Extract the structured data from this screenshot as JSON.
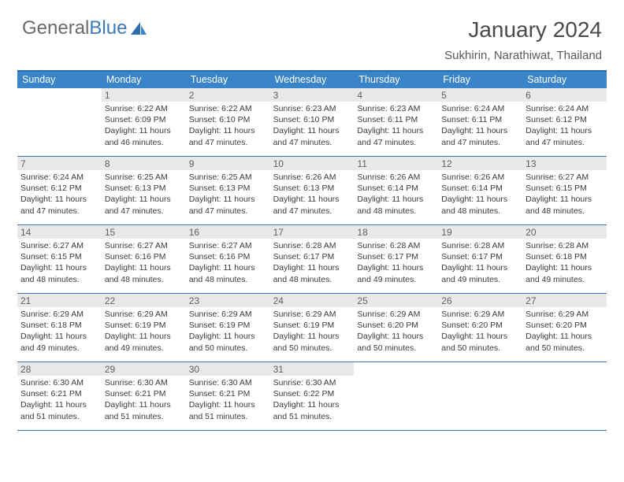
{
  "logo": {
    "text1": "General",
    "text2": "Blue"
  },
  "title": "January 2024",
  "location": "Sukhirin, Narathiwat, Thailand",
  "colors": {
    "header_bar": "#3a85c9",
    "border": "#3a75ad",
    "daynum_bg": "#e9e9e9",
    "logo_gray": "#6a6a6a",
    "logo_blue": "#3a7ab8",
    "text": "#3a3a3a"
  },
  "day_names": [
    "Sunday",
    "Monday",
    "Tuesday",
    "Wednesday",
    "Thursday",
    "Friday",
    "Saturday"
  ],
  "first_weekday_index": 1,
  "days": [
    {
      "n": 1,
      "sr": "6:22 AM",
      "ss": "6:09 PM",
      "dl": "11 hours and 46 minutes."
    },
    {
      "n": 2,
      "sr": "6:22 AM",
      "ss": "6:10 PM",
      "dl": "11 hours and 47 minutes."
    },
    {
      "n": 3,
      "sr": "6:23 AM",
      "ss": "6:10 PM",
      "dl": "11 hours and 47 minutes."
    },
    {
      "n": 4,
      "sr": "6:23 AM",
      "ss": "6:11 PM",
      "dl": "11 hours and 47 minutes."
    },
    {
      "n": 5,
      "sr": "6:24 AM",
      "ss": "6:11 PM",
      "dl": "11 hours and 47 minutes."
    },
    {
      "n": 6,
      "sr": "6:24 AM",
      "ss": "6:12 PM",
      "dl": "11 hours and 47 minutes."
    },
    {
      "n": 7,
      "sr": "6:24 AM",
      "ss": "6:12 PM",
      "dl": "11 hours and 47 minutes."
    },
    {
      "n": 8,
      "sr": "6:25 AM",
      "ss": "6:13 PM",
      "dl": "11 hours and 47 minutes."
    },
    {
      "n": 9,
      "sr": "6:25 AM",
      "ss": "6:13 PM",
      "dl": "11 hours and 47 minutes."
    },
    {
      "n": 10,
      "sr": "6:26 AM",
      "ss": "6:13 PM",
      "dl": "11 hours and 47 minutes."
    },
    {
      "n": 11,
      "sr": "6:26 AM",
      "ss": "6:14 PM",
      "dl": "11 hours and 48 minutes."
    },
    {
      "n": 12,
      "sr": "6:26 AM",
      "ss": "6:14 PM",
      "dl": "11 hours and 48 minutes."
    },
    {
      "n": 13,
      "sr": "6:27 AM",
      "ss": "6:15 PM",
      "dl": "11 hours and 48 minutes."
    },
    {
      "n": 14,
      "sr": "6:27 AM",
      "ss": "6:15 PM",
      "dl": "11 hours and 48 minutes."
    },
    {
      "n": 15,
      "sr": "6:27 AM",
      "ss": "6:16 PM",
      "dl": "11 hours and 48 minutes."
    },
    {
      "n": 16,
      "sr": "6:27 AM",
      "ss": "6:16 PM",
      "dl": "11 hours and 48 minutes."
    },
    {
      "n": 17,
      "sr": "6:28 AM",
      "ss": "6:17 PM",
      "dl": "11 hours and 48 minutes."
    },
    {
      "n": 18,
      "sr": "6:28 AM",
      "ss": "6:17 PM",
      "dl": "11 hours and 49 minutes."
    },
    {
      "n": 19,
      "sr": "6:28 AM",
      "ss": "6:17 PM",
      "dl": "11 hours and 49 minutes."
    },
    {
      "n": 20,
      "sr": "6:28 AM",
      "ss": "6:18 PM",
      "dl": "11 hours and 49 minutes."
    },
    {
      "n": 21,
      "sr": "6:29 AM",
      "ss": "6:18 PM",
      "dl": "11 hours and 49 minutes."
    },
    {
      "n": 22,
      "sr": "6:29 AM",
      "ss": "6:19 PM",
      "dl": "11 hours and 49 minutes."
    },
    {
      "n": 23,
      "sr": "6:29 AM",
      "ss": "6:19 PM",
      "dl": "11 hours and 50 minutes."
    },
    {
      "n": 24,
      "sr": "6:29 AM",
      "ss": "6:19 PM",
      "dl": "11 hours and 50 minutes."
    },
    {
      "n": 25,
      "sr": "6:29 AM",
      "ss": "6:20 PM",
      "dl": "11 hours and 50 minutes."
    },
    {
      "n": 26,
      "sr": "6:29 AM",
      "ss": "6:20 PM",
      "dl": "11 hours and 50 minutes."
    },
    {
      "n": 27,
      "sr": "6:29 AM",
      "ss": "6:20 PM",
      "dl": "11 hours and 50 minutes."
    },
    {
      "n": 28,
      "sr": "6:30 AM",
      "ss": "6:21 PM",
      "dl": "11 hours and 51 minutes."
    },
    {
      "n": 29,
      "sr": "6:30 AM",
      "ss": "6:21 PM",
      "dl": "11 hours and 51 minutes."
    },
    {
      "n": 30,
      "sr": "6:30 AM",
      "ss": "6:21 PM",
      "dl": "11 hours and 51 minutes."
    },
    {
      "n": 31,
      "sr": "6:30 AM",
      "ss": "6:22 PM",
      "dl": "11 hours and 51 minutes."
    }
  ],
  "labels": {
    "sunrise": "Sunrise:",
    "sunset": "Sunset:",
    "daylight": "Daylight:"
  }
}
